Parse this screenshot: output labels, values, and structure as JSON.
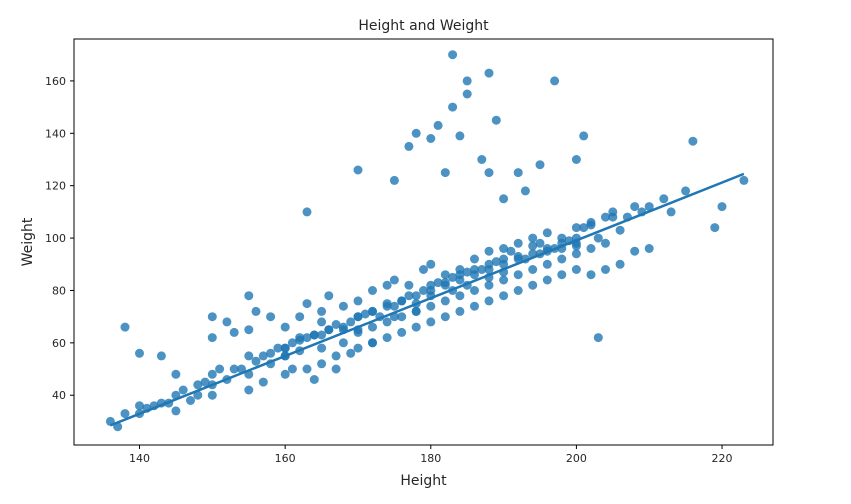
{
  "chart_data": {
    "type": "scatter",
    "title": "Height and Weight",
    "xlabel": "Height",
    "ylabel": "Weight",
    "xlim": [
      131,
      227
    ],
    "ylim": [
      21,
      176
    ],
    "xticks": [
      140,
      160,
      180,
      200,
      220
    ],
    "yticks": [
      40,
      60,
      80,
      100,
      120,
      140,
      160
    ],
    "grid": false,
    "legend": "none",
    "colors": {
      "marker": "#1f77b4",
      "line": "#1f77b4",
      "axes": "#000000",
      "text": "#262626"
    },
    "regression_line": {
      "x": [
        136,
        223
      ],
      "y": [
        28.5,
        124.5
      ]
    },
    "series": [
      {
        "x": [
          136,
          137,
          138,
          140,
          140,
          141,
          142,
          143,
          144,
          145,
          145,
          146,
          147,
          148,
          148,
          149,
          150,
          150,
          150,
          151,
          152,
          153,
          154,
          155,
          155,
          156,
          157,
          158,
          158,
          159,
          160,
          160,
          161,
          162,
          162,
          163,
          164,
          165,
          165,
          166,
          167,
          168,
          168,
          169,
          170,
          170,
          171,
          172,
          173,
          174,
          175,
          175,
          176,
          177,
          178,
          178,
          179,
          180,
          180,
          181,
          182,
          183,
          183,
          184,
          185,
          185,
          186,
          187,
          188,
          188,
          189,
          190,
          190,
          191,
          192,
          193,
          194,
          195,
          195,
          196,
          197,
          198,
          199,
          200,
          200,
          201,
          202,
          203,
          204,
          205,
          206,
          207,
          208,
          209,
          210,
          212,
          213,
          215,
          216,
          219,
          220,
          223,
          138,
          140,
          143,
          145,
          150,
          153,
          155,
          160,
          163,
          164,
          165,
          167,
          170,
          172,
          175,
          177,
          178,
          180,
          181,
          182,
          183,
          183,
          184,
          185,
          185,
          187,
          188,
          188,
          189,
          190,
          192,
          193,
          195,
          197,
          200,
          201,
          203,
          150,
          152,
          155,
          156,
          158,
          160,
          162,
          163,
          165,
          166,
          168,
          170,
          172,
          174,
          175,
          177,
          179,
          180,
          182,
          184,
          186,
          188,
          190,
          192,
          194,
          196,
          198,
          200,
          202,
          205,
          155,
          157,
          160,
          161,
          163,
          165,
          167,
          169,
          170,
          172,
          174,
          176,
          178,
          180,
          182,
          184,
          186,
          188,
          190,
          192,
          194,
          196,
          198,
          200,
          202,
          204,
          206,
          208,
          210,
          160,
          162,
          164,
          166,
          168,
          170,
          172,
          174,
          176,
          178,
          180,
          182,
          184,
          186,
          188,
          190,
          192,
          194,
          196,
          198,
          200,
          170,
          172,
          174,
          176,
          178,
          180,
          182,
          184,
          186,
          188,
          190,
          192,
          194,
          196,
          198,
          200,
          202,
          204
        ],
        "y": [
          30,
          28,
          33,
          33,
          36,
          35,
          36,
          37,
          37,
          40,
          34,
          42,
          38,
          44,
          40,
          45,
          48,
          44,
          40,
          50,
          46,
          50,
          50,
          55,
          48,
          53,
          55,
          56,
          52,
          58,
          58,
          55,
          60,
          61,
          57,
          62,
          63,
          63,
          58,
          65,
          67,
          65,
          60,
          68,
          70,
          65,
          71,
          72,
          70,
          75,
          74,
          70,
          76,
          78,
          75,
          72,
          80,
          82,
          78,
          83,
          83,
          85,
          80,
          86,
          87,
          82,
          88,
          88,
          90,
          85,
          91,
          92,
          87,
          95,
          93,
          92,
          97,
          98,
          94,
          96,
          96,
          100,
          99,
          100,
          98,
          104,
          105,
          100,
          108,
          110,
          103,
          108,
          112,
          110,
          112,
          115,
          110,
          118,
          137,
          104,
          112,
          122,
          66,
          56,
          55,
          48,
          70,
          64,
          78,
          55,
          110,
          46,
          68,
          50,
          126,
          60,
          122,
          135,
          140,
          138,
          143,
          125,
          150,
          170,
          139,
          160,
          155,
          130,
          125,
          163,
          145,
          115,
          125,
          118,
          128,
          160,
          130,
          139,
          62,
          62,
          68,
          65,
          72,
          70,
          66,
          70,
          75,
          72,
          78,
          74,
          76,
          80,
          82,
          84,
          82,
          88,
          90,
          86,
          88,
          92,
          95,
          96,
          98,
          100,
          102,
          98,
          104,
          106,
          108,
          42,
          45,
          48,
          50,
          50,
          52,
          55,
          56,
          58,
          60,
          62,
          64,
          66,
          68,
          70,
          72,
          74,
          76,
          78,
          80,
          82,
          84,
          86,
          88,
          86,
          88,
          90,
          95,
          96,
          58,
          62,
          63,
          65,
          66,
          70,
          72,
          74,
          76,
          78,
          80,
          82,
          84,
          86,
          88,
          90,
          92,
          94,
          95,
          96,
          97,
          64,
          66,
          68,
          70,
          72,
          74,
          76,
          78,
          80,
          82,
          84,
          86,
          88,
          90,
          92,
          94,
          96,
          98
        ]
      }
    ]
  }
}
